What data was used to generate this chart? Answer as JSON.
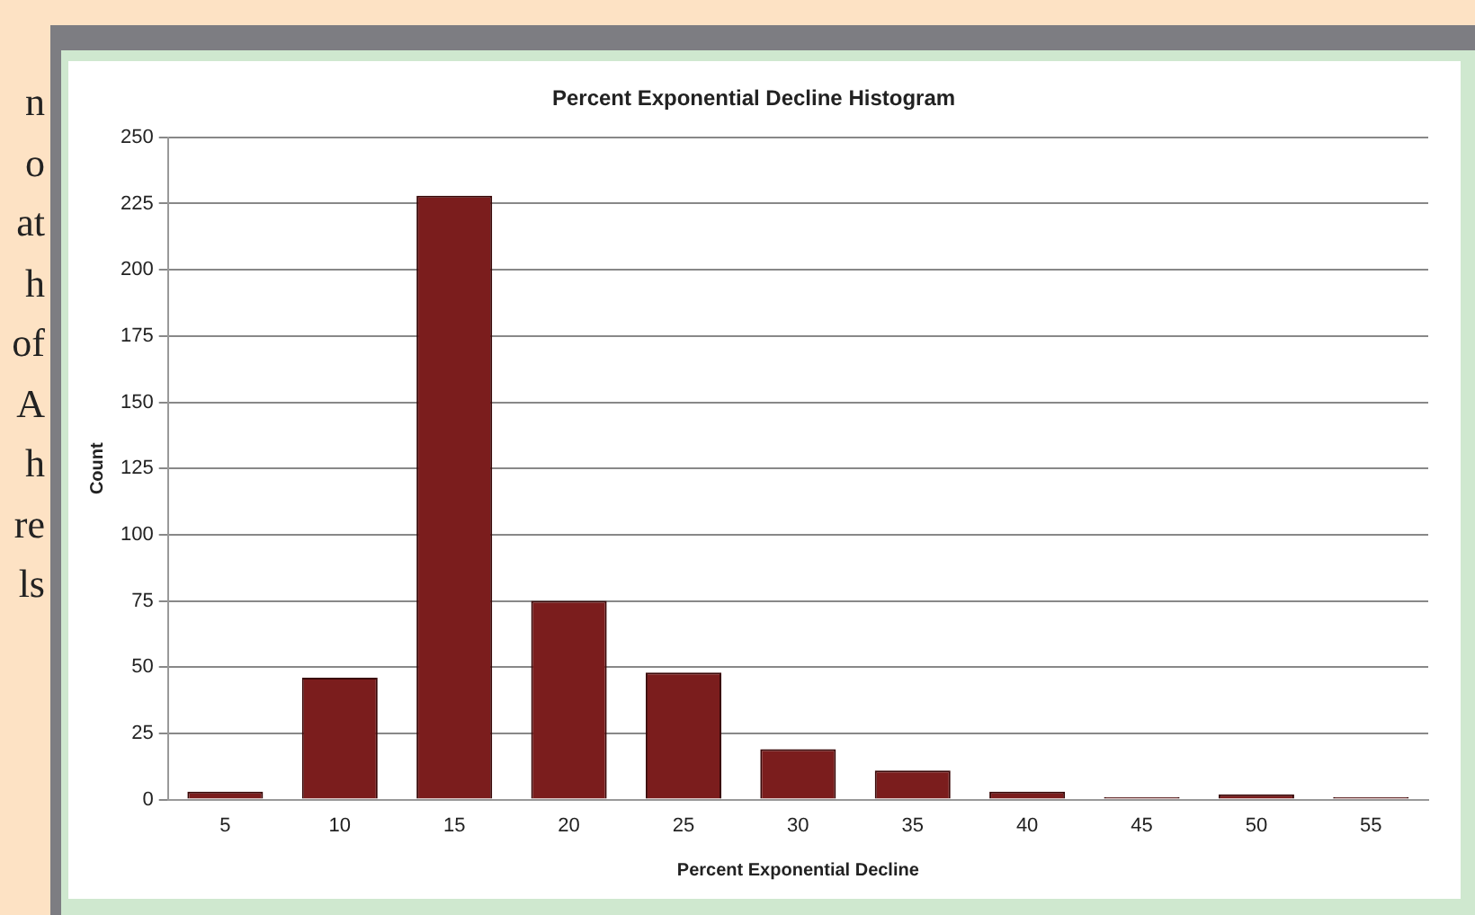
{
  "chart_data": {
    "type": "bar",
    "title": "Percent Exponential Decline Histogram",
    "xlabel": "Percent Exponential Decline",
    "ylabel": "Count",
    "categories": [
      "5",
      "10",
      "15",
      "20",
      "25",
      "30",
      "35",
      "40",
      "45",
      "50",
      "55"
    ],
    "values": [
      3,
      46,
      228,
      75,
      48,
      19,
      11,
      3,
      1,
      2,
      1
    ],
    "color": "#7b1d1d",
    "ylim": [
      0,
      250
    ],
    "yticks": [
      0,
      25,
      50,
      75,
      100,
      125,
      150,
      175,
      200,
      225,
      250
    ],
    "grid": "y",
    "legend": false,
    "annotations": [
      "n",
      "o",
      "at",
      "h",
      "of",
      "A",
      "h",
      "re",
      "ls"
    ]
  }
}
